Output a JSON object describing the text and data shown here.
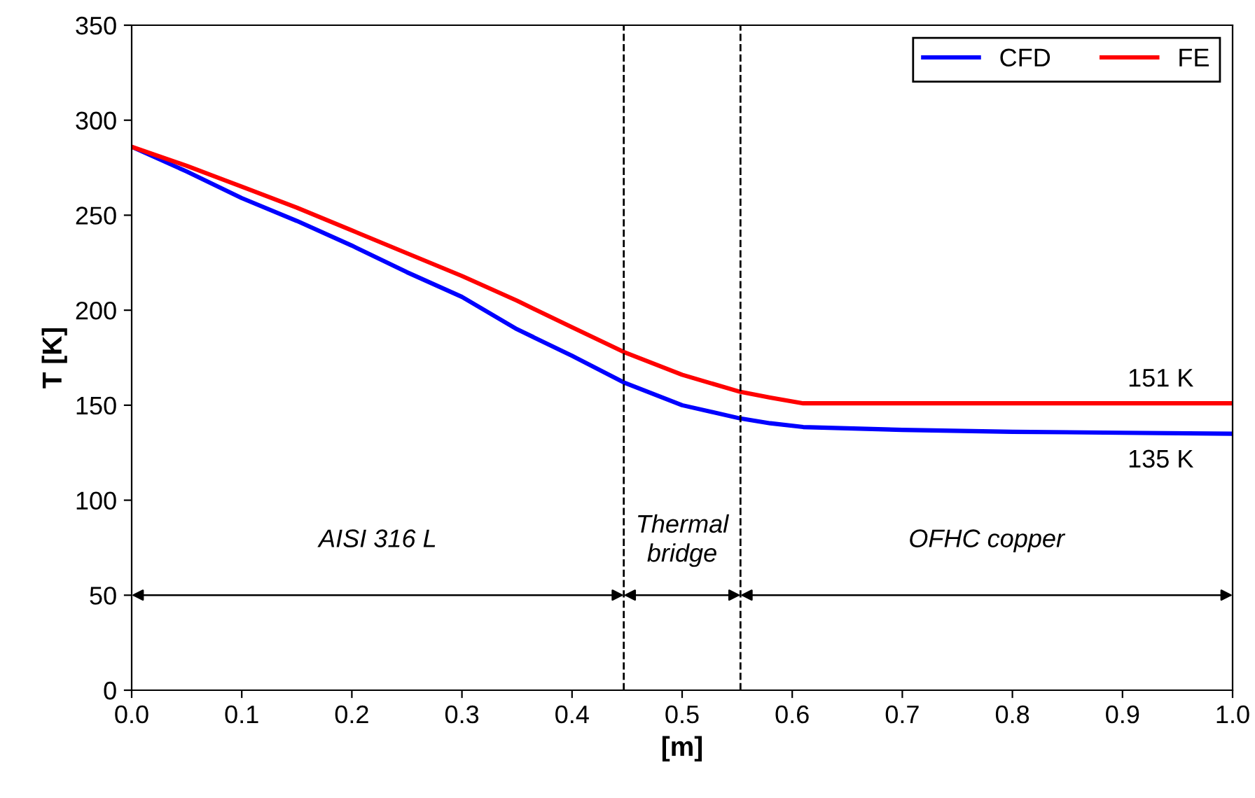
{
  "chart_data": {
    "type": "line",
    "xlabel": "[m]",
    "ylabel": "T [K]",
    "xlim": [
      0,
      1
    ],
    "ylim": [
      0,
      350
    ],
    "xticks": [
      {
        "value": 0,
        "label": "0.0"
      },
      {
        "value": 0.1,
        "label": "0.1"
      },
      {
        "value": 0.2,
        "label": "0.2"
      },
      {
        "value": 0.3,
        "label": "0.3"
      },
      {
        "value": 0.4,
        "label": "0.4"
      },
      {
        "value": 0.5,
        "label": "0.5"
      },
      {
        "value": 0.6,
        "label": "0.6"
      },
      {
        "value": 0.7,
        "label": "0.7"
      },
      {
        "value": 0.8,
        "label": "0.8"
      },
      {
        "value": 0.9,
        "label": "0.9"
      },
      {
        "value": 1,
        "label": "1.0"
      }
    ],
    "yticks": [
      0,
      50,
      100,
      150,
      200,
      250,
      300,
      350
    ],
    "x": [
      0,
      0.05,
      0.1,
      0.15,
      0.2,
      0.25,
      0.3,
      0.35,
      0.4,
      0.447,
      0.5,
      0.553,
      0.58,
      0.61,
      0.7,
      0.8,
      0.9,
      1.0
    ],
    "series": [
      {
        "name": "CFD",
        "color": "#0000ff",
        "values": [
          286,
          273,
          259,
          247,
          234,
          220,
          207,
          190,
          176,
          162,
          150,
          143,
          140.5,
          138.5,
          137,
          136,
          135.5,
          135
        ]
      },
      {
        "name": "FE",
        "color": "#ff0000",
        "values": [
          286,
          276,
          265,
          254,
          242,
          230,
          218,
          205,
          191,
          178,
          166,
          157,
          154,
          151,
          151,
          151,
          151,
          151
        ]
      }
    ],
    "ref_lines": [
      {
        "axis": "x",
        "value": 0.447,
        "color": "#000000",
        "line_style": "dashed"
      },
      {
        "axis": "x",
        "value": 0.553,
        "color": "#000000",
        "line_style": "dashed"
      }
    ],
    "annotations": [
      "AISI 316 L",
      "Thermal\nbridge",
      "OFHC copper",
      "135 K",
      "151 K"
    ],
    "grid": false,
    "legend": "top right",
    "marker": "none",
    "line_style": "solid"
  }
}
